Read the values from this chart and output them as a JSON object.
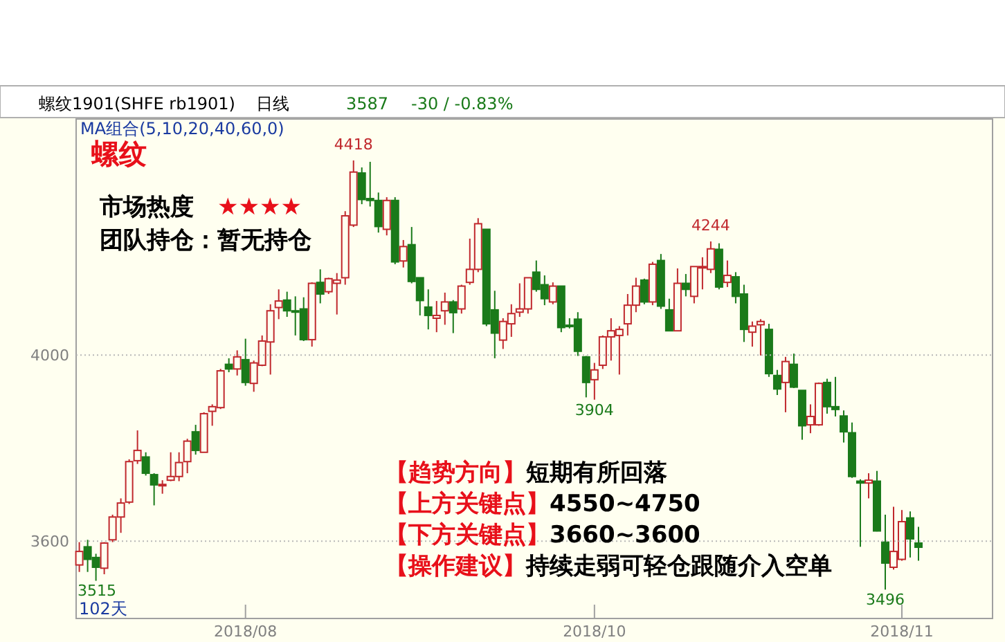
{
  "chart_data": {
    "type": "candlestick",
    "title": "螺纹",
    "categories": [
      null,
      null,
      null,
      null,
      null,
      null,
      null,
      null,
      null,
      null,
      null,
      null,
      null,
      null,
      null,
      null,
      null,
      null,
      null,
      null,
      "2018/08",
      null,
      null,
      null,
      null,
      null,
      null,
      null,
      null,
      null,
      null,
      null,
      null,
      null,
      null,
      null,
      null,
      null,
      null,
      null,
      null,
      null,
      null,
      null,
      null,
      null,
      null,
      null,
      null,
      null,
      null,
      null,
      null,
      null,
      null,
      null,
      null,
      null,
      null,
      null,
      null,
      null,
      "2018/10",
      null,
      null,
      null,
      null,
      null,
      null,
      null,
      null,
      null,
      null,
      null,
      null,
      null,
      null,
      null,
      null,
      null,
      null,
      null,
      null,
      null,
      null,
      null,
      null,
      null,
      null,
      null,
      null,
      null,
      null,
      null,
      null,
      null,
      null,
      null,
      null,
      "2018/11",
      null,
      null
    ],
    "ohlc": [
      [
        3549,
        3598,
        3534,
        3578
      ],
      [
        3588,
        3603,
        3534,
        3561
      ],
      [
        3565,
        3573,
        3515,
        3544
      ],
      [
        3542,
        3598,
        3529,
        3596
      ],
      [
        3603,
        3657,
        3598,
        3652
      ],
      [
        3652,
        3692,
        3618,
        3682
      ],
      [
        3684,
        3776,
        3680,
        3771
      ],
      [
        3773,
        3838,
        3766,
        3795
      ],
      [
        3781,
        3791,
        3741,
        3746
      ],
      [
        3743,
        3746,
        3677,
        3721
      ],
      [
        3720,
        3731,
        3702,
        3722
      ],
      [
        3731,
        3791,
        3729,
        3739
      ],
      [
        3739,
        3791,
        3729,
        3769
      ],
      [
        3771,
        3820,
        3746,
        3815
      ],
      [
        3835,
        3850,
        3786,
        3795
      ],
      [
        3791,
        3877,
        3791,
        3874
      ],
      [
        3879,
        3894,
        3848,
        3889
      ],
      [
        3887,
        3970,
        3884,
        3966
      ],
      [
        3980,
        3993,
        3963,
        3970
      ],
      [
        3970,
        4010,
        3956,
        3996
      ],
      [
        3990,
        4035,
        3934,
        3941
      ],
      [
        3939,
        3988,
        3921,
        3983
      ],
      [
        3978,
        4042,
        3976,
        4030
      ],
      [
        4028,
        4109,
        3958,
        4095
      ],
      [
        4102,
        4141,
        4077,
        4116
      ],
      [
        4118,
        4136,
        4082,
        4095
      ],
      [
        4095,
        4126,
        4042,
        4092
      ],
      [
        4099,
        4124,
        4030,
        4033
      ],
      [
        4033,
        4156,
        4018,
        4154
      ],
      [
        4156,
        4184,
        4111,
        4131
      ],
      [
        4136,
        4166,
        4131,
        4164
      ],
      [
        4154,
        4176,
        4087,
        4161
      ],
      [
        4166,
        4309,
        4151,
        4299
      ],
      [
        4279,
        4418,
        4275,
        4393
      ],
      [
        4391,
        4403,
        4324,
        4334
      ],
      [
        4336,
        4415,
        4319,
        4332
      ],
      [
        4332,
        4349,
        4263,
        4276
      ],
      [
        4270,
        4339,
        4257,
        4332
      ],
      [
        4332,
        4339,
        4195,
        4200
      ],
      [
        4202,
        4247,
        4188,
        4233
      ],
      [
        4237,
        4275,
        4154,
        4158
      ],
      [
        4166,
        4166,
        4085,
        4117
      ],
      [
        4103,
        4141,
        4055,
        4085
      ],
      [
        4079,
        4116,
        4049,
        4085
      ],
      [
        4095,
        4134,
        4065,
        4114
      ],
      [
        4114,
        4118,
        4047,
        4091
      ],
      [
        4099,
        4151,
        4089,
        4148
      ],
      [
        4156,
        4250,
        4151,
        4184
      ],
      [
        4184,
        4294,
        4178,
        4282
      ],
      [
        4270,
        4270,
        4062,
        4067
      ],
      [
        4097,
        4138,
        3993,
        4047
      ],
      [
        4032,
        4079,
        4013,
        4072
      ],
      [
        4067,
        4109,
        4039,
        4089
      ],
      [
        4092,
        4154,
        4082,
        4099
      ],
      [
        4099,
        4166,
        4089,
        4166
      ],
      [
        4178,
        4203,
        4136,
        4141
      ],
      [
        4151,
        4171,
        4107,
        4121
      ],
      [
        4114,
        4156,
        4109,
        4148
      ],
      [
        4148,
        4148,
        4049,
        4059
      ],
      [
        4064,
        4079,
        4057,
        4063
      ],
      [
        4077,
        4092,
        3998,
        4008
      ],
      [
        3996,
        3998,
        3909,
        3941
      ],
      [
        3947,
        3983,
        3904,
        3968
      ],
      [
        3978,
        4042,
        3970,
        4039
      ],
      [
        4039,
        4079,
        3988,
        4052
      ],
      [
        4042,
        4062,
        3958,
        4055
      ],
      [
        4067,
        4131,
        4042,
        4107
      ],
      [
        4107,
        4166,
        4092,
        4148
      ],
      [
        4161,
        4164,
        4109,
        4114
      ],
      [
        4114,
        4200,
        4107,
        4195
      ],
      [
        4203,
        4217,
        4099,
        4105
      ],
      [
        4097,
        4121,
        4052,
        4052
      ],
      [
        4052,
        4186,
        4052,
        4154
      ],
      [
        4154,
        4174,
        4126,
        4141
      ],
      [
        4126,
        4190,
        4111,
        4190
      ],
      [
        4188,
        4210,
        4141,
        4190
      ],
      [
        4184,
        4244,
        4176,
        4228
      ],
      [
        4227,
        4240,
        4141,
        4146
      ],
      [
        4156,
        4203,
        4146,
        4171
      ],
      [
        4168,
        4178,
        4111,
        4126
      ],
      [
        4131,
        4151,
        4028,
        4055
      ],
      [
        4049,
        4072,
        4018,
        4062
      ],
      [
        4065,
        4077,
        3999,
        4072
      ],
      [
        4055,
        4067,
        3953,
        3960
      ],
      [
        3956,
        3968,
        3914,
        3927
      ],
      [
        3941,
        3996,
        3877,
        3986
      ],
      [
        3980,
        4003,
        3929,
        3931
      ],
      [
        3924,
        3924,
        3818,
        3848
      ],
      [
        3850,
        3894,
        3832,
        3868
      ],
      [
        3850,
        3941,
        3848,
        3939
      ],
      [
        3941,
        3949,
        3874,
        3889
      ],
      [
        3889,
        3953,
        3868,
        3883
      ],
      [
        3869,
        3881,
        3812,
        3835
      ],
      [
        3833,
        3855,
        3736,
        3739
      ],
      [
        3729,
        3733,
        3588,
        3725
      ],
      [
        3725,
        3746,
        3692,
        3731
      ],
      [
        3729,
        3751,
        3621,
        3622
      ],
      [
        3598,
        3657,
        3496,
        3553
      ],
      [
        3544,
        3674,
        3539,
        3578
      ],
      [
        3561,
        3667,
        3558,
        3642
      ],
      [
        3650,
        3664,
        3565,
        3605
      ],
      [
        3596,
        3631,
        3558,
        3587
      ]
    ],
    "ylim": [
      3434,
      4507
    ],
    "yticks": [
      3600,
      4000
    ],
    "grid": "y",
    "annotations": [
      "螺纹1901(SHFE rb1901)",
      "日线",
      "3587",
      "-30 / -0.83%",
      "MA组合(5,10,20,40,60,0)",
      "市场热度",
      "★★★★",
      "团队持仓：暂无持仓",
      "【趋势方向】",
      "短期有所回落",
      "【上方关键点】",
      "4550~4750",
      "【下方关键点】",
      "3660~3600",
      "【操作建议】",
      "持续走弱可轻仓跟随介入空单",
      "102天",
      {
        "text": "4418",
        "y": 4418
      },
      {
        "text": "4244",
        "y": 4244
      },
      {
        "text": "3904",
        "y": 3904
      },
      {
        "text": "3496",
        "y": 3496
      },
      {
        "text": "3515",
        "y": 3515
      }
    ]
  }
}
